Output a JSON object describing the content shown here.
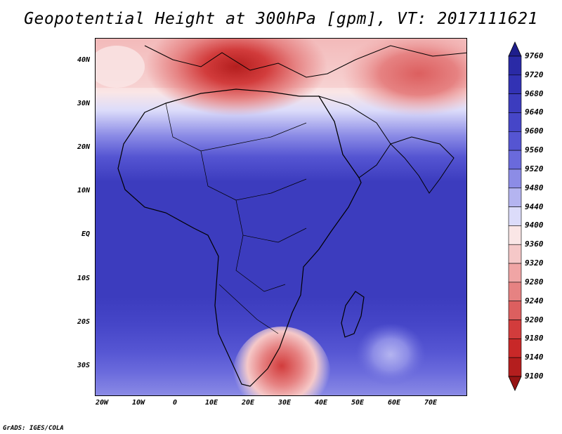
{
  "title": "Geopotential Height at 300hPa [gpm], VT: 2017111621",
  "credit": "GrADS: IGES/COLA",
  "latitude_labels": [
    "40N",
    "30N",
    "20N",
    "10N",
    "EQ",
    "10S",
    "20S",
    "30S"
  ],
  "longitude_labels": [
    "20W",
    "10W",
    "0",
    "10E",
    "20E",
    "30E",
    "40E",
    "50E",
    "60E",
    "70E"
  ],
  "colorbar": {
    "levels": [
      "9760",
      "9720",
      "9680",
      "9640",
      "9600",
      "9560",
      "9520",
      "9480",
      "9440",
      "9400",
      "9360",
      "9320",
      "9280",
      "9240",
      "9200",
      "9180",
      "9140",
      "9100"
    ],
    "colors": [
      "#1e1e8c",
      "#2a2aa6",
      "#3232b4",
      "#3c3cbe",
      "#4646c8",
      "#5555d2",
      "#6a6adc",
      "#8c8ce6",
      "#b4b4f0",
      "#dcdcfa",
      "#fae6e6",
      "#f5c8c8",
      "#f0a5a5",
      "#e68282",
      "#dc5f5f",
      "#d23c3c",
      "#c82828",
      "#b41e1e",
      "#961414"
    ]
  }
}
